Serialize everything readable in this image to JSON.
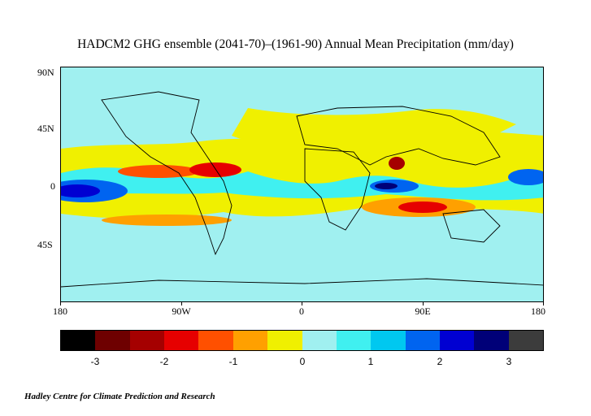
{
  "title": "HADCM2 GHG ensemble (2041-70)–(1961-90) Annual Mean Precipitation (mm/day)",
  "lat_labels": [
    "90N",
    "45N",
    "0",
    "45S"
  ],
  "lon_labels": [
    "180",
    "90W",
    "0",
    "90E",
    "180"
  ],
  "colorbar": {
    "colors": [
      "#000000",
      "#6e0000",
      "#a50000",
      "#e60000",
      "#ff5000",
      "#ffa000",
      "#f0f000",
      "#a0f0f0",
      "#40f0f0",
      "#00c8f0",
      "#0064f0",
      "#0000d2",
      "#000078",
      "#3c3c3c"
    ],
    "labels": [
      "-3",
      "-2",
      "-1",
      "0",
      "1",
      "2",
      "3"
    ]
  },
  "credit": "Hadley Centre for Climate Prediction and Research"
}
